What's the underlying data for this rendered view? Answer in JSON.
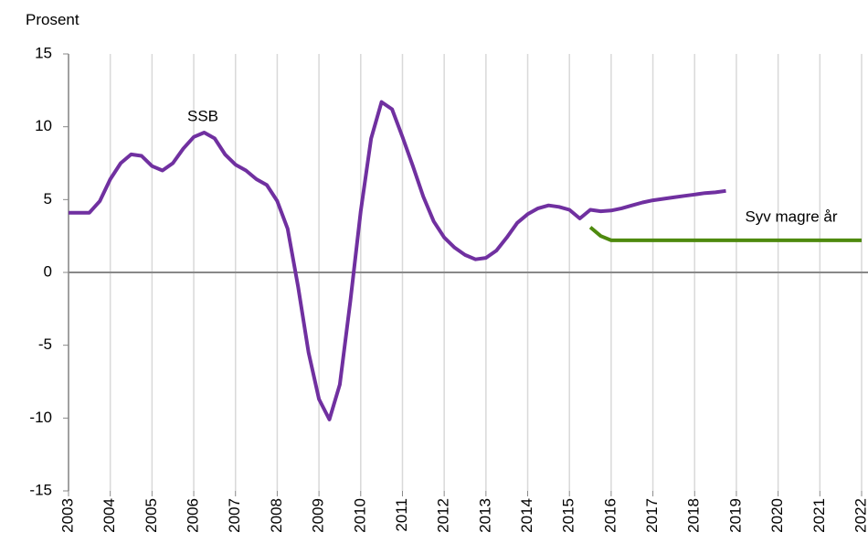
{
  "chart_data": {
    "type": "line",
    "ylabel": "Prosent",
    "xlim": [
      2003,
      2022
    ],
    "xticks": [
      2003,
      2004,
      2005,
      2006,
      2007,
      2008,
      2009,
      2010,
      2011,
      2012,
      2013,
      2014,
      2015,
      2016,
      2017,
      2018,
      2019,
      2020,
      2021,
      2022
    ],
    "ylim": [
      -15,
      15
    ],
    "yticks": [
      -15,
      -10,
      -5,
      0,
      5,
      10,
      15
    ],
    "grid": true,
    "series": [
      {
        "name": "SSB",
        "color": "#7030a0",
        "x": [
          2003,
          2003.25,
          2003.5,
          2003.75,
          2004,
          2004.25,
          2004.5,
          2004.75,
          2005,
          2005.25,
          2005.5,
          2005.75,
          2006,
          2006.25,
          2006.5,
          2006.75,
          2007,
          2007.25,
          2007.5,
          2007.75,
          2008,
          2008.25,
          2008.5,
          2008.75,
          2009,
          2009.25,
          2009.5,
          2009.75,
          2010,
          2010.25,
          2010.5,
          2010.75,
          2011,
          2011.25,
          2011.5,
          2011.75,
          2012,
          2012.25,
          2012.5,
          2012.75,
          2013,
          2013.25,
          2013.5,
          2013.75,
          2014,
          2014.25,
          2014.5,
          2014.75,
          2015,
          2015.25,
          2015.5,
          2015.75,
          2016,
          2016.25,
          2016.5,
          2016.75,
          2017,
          2017.25,
          2017.5,
          2017.75,
          2018,
          2018.25,
          2018.5,
          2018.75
        ],
        "values": [
          4.1,
          4.1,
          4.1,
          4.9,
          6.4,
          7.5,
          8.1,
          8.0,
          7.3,
          7.0,
          7.5,
          8.5,
          9.3,
          9.6,
          9.2,
          8.1,
          7.4,
          7.0,
          6.4,
          6.0,
          4.9,
          3.0,
          -1.0,
          -5.5,
          -8.7,
          -10.1,
          -7.7,
          -2.0,
          4.2,
          9.2,
          11.7,
          11.2,
          9.3,
          7.3,
          5.2,
          3.5,
          2.4,
          1.7,
          1.2,
          0.9,
          1.0,
          1.5,
          2.4,
          3.4,
          4.0,
          4.4,
          4.6,
          4.5,
          4.3,
          3.7,
          4.3,
          4.2,
          4.25,
          4.4,
          4.6,
          4.8,
          4.95,
          5.05,
          5.15,
          5.25,
          5.35,
          5.45,
          5.5,
          5.6
        ]
      },
      {
        "name": "Syv magre år",
        "color": "#4e8a0e",
        "x": [
          2015.5,
          2015.75,
          2016,
          2022
        ],
        "values": [
          3.1,
          2.5,
          2.2,
          2.2
        ]
      }
    ]
  }
}
